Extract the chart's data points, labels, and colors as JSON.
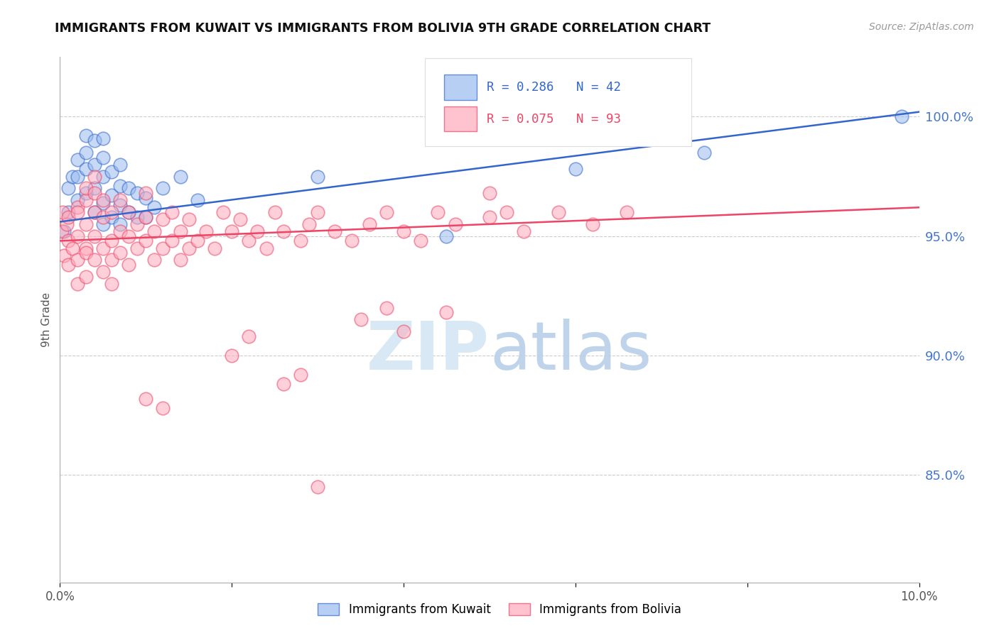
{
  "title": "IMMIGRANTS FROM KUWAIT VS IMMIGRANTS FROM BOLIVIA 9TH GRADE CORRELATION CHART",
  "source": "Source: ZipAtlas.com",
  "ylabel": "9th Grade",
  "xlim": [
    0.0,
    0.1
  ],
  "ylim": [
    0.805,
    1.025
  ],
  "yticks": [
    0.85,
    0.9,
    0.95,
    1.0
  ],
  "ytick_labels": [
    "85.0%",
    "90.0%",
    "95.0%",
    "100.0%"
  ],
  "kuwait_R": "0.286",
  "kuwait_N": "42",
  "bolivia_R": "0.075",
  "bolivia_N": "93",
  "kuwait_color": "#99BBEE",
  "bolivia_color": "#FFAABB",
  "line_kuwait_color": "#3366CC",
  "line_bolivia_color": "#EE4466",
  "legend_label_kuwait": "Immigrants from Kuwait",
  "legend_label_bolivia": "Immigrants from Bolivia",
  "kuwait_x": [
    0.0005,
    0.001,
    0.001,
    0.0015,
    0.002,
    0.002,
    0.002,
    0.003,
    0.003,
    0.003,
    0.003,
    0.004,
    0.004,
    0.004,
    0.004,
    0.005,
    0.005,
    0.005,
    0.005,
    0.005,
    0.006,
    0.006,
    0.006,
    0.007,
    0.007,
    0.007,
    0.007,
    0.008,
    0.008,
    0.009,
    0.009,
    0.01,
    0.01,
    0.011,
    0.012,
    0.014,
    0.016,
    0.03,
    0.045,
    0.06,
    0.075,
    0.098
  ],
  "kuwait_y": [
    0.952,
    0.96,
    0.97,
    0.975,
    0.965,
    0.975,
    0.982,
    0.968,
    0.978,
    0.985,
    0.992,
    0.96,
    0.97,
    0.98,
    0.99,
    0.955,
    0.964,
    0.975,
    0.983,
    0.991,
    0.958,
    0.967,
    0.977,
    0.955,
    0.963,
    0.971,
    0.98,
    0.96,
    0.97,
    0.958,
    0.968,
    0.958,
    0.966,
    0.962,
    0.97,
    0.975,
    0.965,
    0.975,
    0.95,
    0.978,
    0.985,
    1.0
  ],
  "bolivia_x": [
    0.0002,
    0.0003,
    0.0005,
    0.0008,
    0.001,
    0.001,
    0.001,
    0.0015,
    0.002,
    0.002,
    0.002,
    0.002,
    0.002,
    0.003,
    0.003,
    0.003,
    0.003,
    0.003,
    0.003,
    0.004,
    0.004,
    0.004,
    0.004,
    0.004,
    0.005,
    0.005,
    0.005,
    0.005,
    0.006,
    0.006,
    0.006,
    0.006,
    0.007,
    0.007,
    0.007,
    0.008,
    0.008,
    0.008,
    0.009,
    0.009,
    0.01,
    0.01,
    0.01,
    0.011,
    0.011,
    0.012,
    0.012,
    0.013,
    0.013,
    0.014,
    0.014,
    0.015,
    0.015,
    0.016,
    0.017,
    0.018,
    0.019,
    0.02,
    0.021,
    0.022,
    0.023,
    0.024,
    0.025,
    0.026,
    0.028,
    0.029,
    0.03,
    0.032,
    0.034,
    0.036,
    0.038,
    0.04,
    0.042,
    0.044,
    0.046,
    0.05,
    0.054,
    0.058,
    0.062,
    0.066,
    0.04,
    0.045,
    0.02,
    0.022,
    0.035,
    0.038,
    0.028,
    0.026,
    0.01,
    0.012,
    0.05,
    0.052,
    0.03
  ],
  "bolivia_y": [
    0.952,
    0.96,
    0.942,
    0.955,
    0.938,
    0.948,
    0.958,
    0.945,
    0.95,
    0.962,
    0.93,
    0.94,
    0.96,
    0.945,
    0.955,
    0.965,
    0.933,
    0.943,
    0.97,
    0.95,
    0.96,
    0.94,
    0.968,
    0.975,
    0.945,
    0.958,
    0.935,
    0.965,
    0.948,
    0.96,
    0.94,
    0.93,
    0.952,
    0.943,
    0.965,
    0.938,
    0.95,
    0.96,
    0.945,
    0.955,
    0.948,
    0.958,
    0.968,
    0.94,
    0.952,
    0.945,
    0.957,
    0.948,
    0.96,
    0.94,
    0.952,
    0.945,
    0.957,
    0.948,
    0.952,
    0.945,
    0.96,
    0.952,
    0.957,
    0.948,
    0.952,
    0.945,
    0.96,
    0.952,
    0.948,
    0.955,
    0.96,
    0.952,
    0.948,
    0.955,
    0.96,
    0.952,
    0.948,
    0.96,
    0.955,
    0.958,
    0.952,
    0.96,
    0.955,
    0.96,
    0.91,
    0.918,
    0.9,
    0.908,
    0.915,
    0.92,
    0.892,
    0.888,
    0.882,
    0.878,
    0.968,
    0.96,
    0.845
  ]
}
